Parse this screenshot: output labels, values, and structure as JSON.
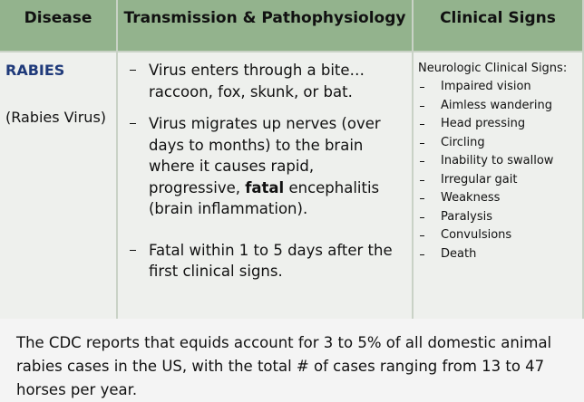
{
  "table": {
    "headers": [
      "Disease",
      "Transmission & Pathophysiology",
      "Clinical Signs"
    ],
    "disease": {
      "name": "RABIES",
      "agent": "(Rabies Virus)"
    },
    "transmission": [
      [
        "Virus enters through a bite… raccoon, fox, skunk, or bat."
      ],
      [
        "Virus migrates up nerves (over days to months) to the brain where it causes rapid, progressive, ",
        "fatal",
        " encephalitis (brain inflammation)."
      ],
      [
        "Fatal within 1 to 5 days after the first clinical signs."
      ]
    ],
    "signs_heading": "Neurologic Clinical Signs:",
    "signs": [
      "Impaired vision",
      "Aimless wandering",
      "Head pressing",
      "Circling",
      "Inability to swallow",
      "Irregular gait",
      "Weakness",
      "Paralysis",
      "Convulsions",
      "Death"
    ]
  },
  "footer": "The CDC reports that equids account for 3 to 5% of all domestic animal rabies cases in the US, with the total # of cases ranging from 13 to 47 horses per year."
}
